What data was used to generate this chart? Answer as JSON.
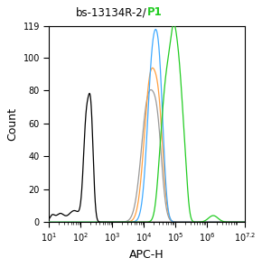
{
  "title_black": "bs-13134R-2/",
  "title_green": "P1",
  "xlabel": "APC-H",
  "ylabel": "Count",
  "xmin": 1,
  "xmax": 7.2,
  "ymin": 0,
  "ymax": 119,
  "yticks": [
    0,
    20,
    40,
    60,
    80,
    100,
    119
  ],
  "xtick_positions": [
    1,
    2,
    3,
    4,
    5,
    6,
    7.2
  ],
  "background_color": "#ffffff",
  "line_colors": {
    "black": "#000000",
    "orange": "#FFA040",
    "blue": "#40AAFF",
    "green": "#22CC22",
    "gray": "#999999"
  }
}
